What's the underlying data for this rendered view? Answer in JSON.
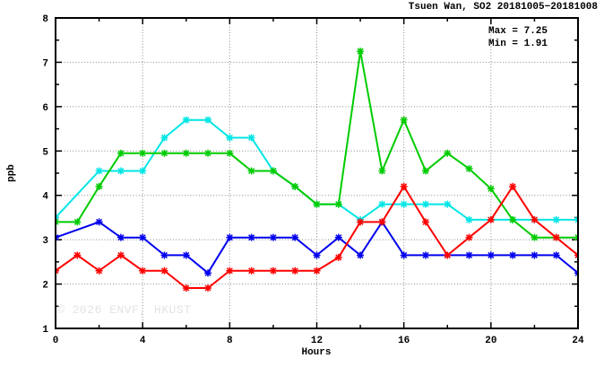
{
  "watermark": "© 2026 ENVF, HKUST",
  "chart_data": {
    "type": "line",
    "title": "Tsuen Wan, SO2 20181005−20181008",
    "xlabel": "Hours",
    "ylabel": "ppb",
    "xlim": [
      0,
      24
    ],
    "ylim": [
      1,
      8
    ],
    "xticks": [
      0,
      4,
      8,
      12,
      16,
      20,
      24
    ],
    "yticks": [
      1,
      2,
      3,
      4,
      5,
      6,
      7,
      8
    ],
    "minor_xtick_step": 2,
    "minor_ytick_step": 0.5,
    "grid_x": [
      4,
      8,
      12,
      16,
      20
    ],
    "grid_y": [
      2,
      3,
      4,
      5,
      6,
      7
    ],
    "grid_color": "#888888",
    "legend": "none",
    "marker": "asterisk",
    "stats_box": {
      "lines": [
        "Max = 7.25",
        "Min = 1.91"
      ]
    },
    "x": [
      0,
      1,
      2,
      3,
      4,
      5,
      6,
      7,
      8,
      9,
      10,
      11,
      12,
      13,
      14,
      15,
      16,
      17,
      18,
      19,
      20,
      21,
      22,
      23,
      24
    ],
    "series": [
      {
        "name": "cyan",
        "color": "#00e5e5",
        "values": [
          3.5,
          null,
          4.55,
          4.55,
          4.55,
          5.3,
          5.7,
          5.7,
          5.3,
          5.3,
          4.55,
          4.2,
          3.8,
          3.8,
          3.45,
          3.8,
          3.8,
          3.8,
          3.8,
          3.45,
          3.45,
          3.45,
          3.45,
          3.45,
          3.45
        ]
      },
      {
        "name": "green",
        "color": "#00cc00",
        "values": [
          3.4,
          3.4,
          4.2,
          4.95,
          4.95,
          4.95,
          4.95,
          4.95,
          4.95,
          4.55,
          4.55,
          4.2,
          3.8,
          3.8,
          7.25,
          4.55,
          5.7,
          4.55,
          4.95,
          4.6,
          4.15,
          3.45,
          3.05,
          3.05,
          3.05
        ]
      },
      {
        "name": "blue",
        "color": "#0000ee",
        "values": [
          3.05,
          null,
          3.4,
          3.05,
          3.05,
          2.65,
          2.65,
          2.25,
          3.05,
          3.05,
          3.05,
          3.05,
          2.65,
          3.05,
          2.65,
          3.4,
          2.65,
          2.65,
          2.65,
          2.65,
          2.65,
          2.65,
          2.65,
          2.65,
          2.25
        ]
      },
      {
        "name": "red",
        "color": "#ff0000",
        "values": [
          2.3,
          2.65,
          2.3,
          2.65,
          2.3,
          2.3,
          1.91,
          1.91,
          2.3,
          2.3,
          2.3,
          2.3,
          2.3,
          2.6,
          3.4,
          3.4,
          4.2,
          3.4,
          2.65,
          3.05,
          3.45,
          4.2,
          3.45,
          3.05,
          2.65
        ]
      }
    ],
    "stats": {
      "max": 7.25,
      "min": 1.91
    }
  }
}
